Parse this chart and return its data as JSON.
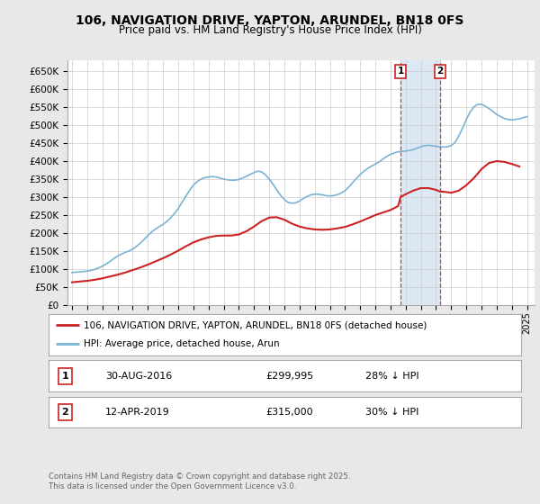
{
  "title": "106, NAVIGATION DRIVE, YAPTON, ARUNDEL, BN18 0FS",
  "subtitle": "Price paid vs. HM Land Registry's House Price Index (HPI)",
  "ylim": [
    0,
    680000
  ],
  "yticks": [
    0,
    50000,
    100000,
    150000,
    200000,
    250000,
    300000,
    350000,
    400000,
    450000,
    500000,
    550000,
    600000,
    650000
  ],
  "xlim_start": 1994.7,
  "xlim_end": 2025.5,
  "hpi_color": "#7ab3d4",
  "price_color": "#cc2222",
  "dashed_color": "#cc2222",
  "shading_color": "#dce9f5",
  "background_color": "#e8e8e8",
  "plot_bg_color": "#ffffff",
  "legend_label_price": "106, NAVIGATION DRIVE, YAPTON, ARUNDEL, BN18 0FS (detached house)",
  "legend_label_hpi": "HPI: Average price, detached house, Arun",
  "sale1_x": 2016.66,
  "sale1_label": "1",
  "sale1_date": "30-AUG-2016",
  "sale1_price": "£299,995",
  "sale1_pct": "28% ↓ HPI",
  "sale2_x": 2019.28,
  "sale2_label": "2",
  "sale2_date": "12-APR-2019",
  "sale2_price": "£315,000",
  "sale2_pct": "30% ↓ HPI",
  "footer": "Contains HM Land Registry data © Crown copyright and database right 2025.\nThis data is licensed under the Open Government Licence v3.0.",
  "hpi_years": [
    1995.0,
    1995.25,
    1995.5,
    1995.75,
    1996.0,
    1996.25,
    1996.5,
    1996.75,
    1997.0,
    1997.25,
    1997.5,
    1997.75,
    1998.0,
    1998.25,
    1998.5,
    1998.75,
    1999.0,
    1999.25,
    1999.5,
    1999.75,
    2000.0,
    2000.25,
    2000.5,
    2000.75,
    2001.0,
    2001.25,
    2001.5,
    2001.75,
    2002.0,
    2002.25,
    2002.5,
    2002.75,
    2003.0,
    2003.25,
    2003.5,
    2003.75,
    2004.0,
    2004.25,
    2004.5,
    2004.75,
    2005.0,
    2005.25,
    2005.5,
    2005.75,
    2006.0,
    2006.25,
    2006.5,
    2006.75,
    2007.0,
    2007.25,
    2007.5,
    2007.75,
    2008.0,
    2008.25,
    2008.5,
    2008.75,
    2009.0,
    2009.25,
    2009.5,
    2009.75,
    2010.0,
    2010.25,
    2010.5,
    2010.75,
    2011.0,
    2011.25,
    2011.5,
    2011.75,
    2012.0,
    2012.25,
    2012.5,
    2012.75,
    2013.0,
    2013.25,
    2013.5,
    2013.75,
    2014.0,
    2014.25,
    2014.5,
    2014.75,
    2015.0,
    2015.25,
    2015.5,
    2015.75,
    2016.0,
    2016.25,
    2016.5,
    2016.75,
    2017.0,
    2017.25,
    2017.5,
    2017.75,
    2018.0,
    2018.25,
    2018.5,
    2018.75,
    2019.0,
    2019.25,
    2019.5,
    2019.75,
    2020.0,
    2020.25,
    2020.5,
    2020.75,
    2021.0,
    2021.25,
    2021.5,
    2021.75,
    2022.0,
    2022.25,
    2022.5,
    2022.75,
    2023.0,
    2023.25,
    2023.5,
    2023.75,
    2024.0,
    2024.25,
    2024.5,
    2024.75,
    2025.0
  ],
  "hpi_values": [
    90000,
    91000,
    92000,
    93000,
    94000,
    96000,
    99000,
    103000,
    108000,
    114000,
    121000,
    129000,
    136000,
    141000,
    146000,
    150000,
    155000,
    163000,
    172000,
    182000,
    193000,
    203000,
    211000,
    218000,
    224000,
    232000,
    242000,
    254000,
    268000,
    285000,
    302000,
    319000,
    333000,
    343000,
    350000,
    354000,
    356000,
    357000,
    356000,
    353000,
    350000,
    348000,
    347000,
    347000,
    349000,
    353000,
    358000,
    363000,
    368000,
    372000,
    370000,
    362000,
    350000,
    336000,
    320000,
    305000,
    293000,
    285000,
    283000,
    284000,
    289000,
    296000,
    302000,
    306000,
    308000,
    308000,
    306000,
    304000,
    303000,
    304000,
    307000,
    311000,
    318000,
    328000,
    340000,
    352000,
    363000,
    372000,
    380000,
    386000,
    392000,
    398000,
    406000,
    413000,
    419000,
    423000,
    426000,
    427000,
    428000,
    430000,
    432000,
    436000,
    440000,
    443000,
    444000,
    443000,
    441000,
    440000,
    439000,
    440000,
    443000,
    452000,
    470000,
    492000,
    516000,
    537000,
    551000,
    558000,
    558000,
    553000,
    546000,
    538000,
    530000,
    524000,
    519000,
    516000,
    515000,
    516000,
    518000,
    521000,
    524000
  ],
  "price_years": [
    1995.0,
    1995.5,
    1996.0,
    1996.5,
    1997.0,
    1997.5,
    1998.0,
    1998.5,
    1999.0,
    1999.5,
    2000.0,
    2000.5,
    2001.0,
    2001.5,
    2002.0,
    2002.5,
    2003.0,
    2003.5,
    2004.0,
    2004.5,
    2005.0,
    2005.5,
    2006.0,
    2006.5,
    2007.0,
    2007.5,
    2008.0,
    2008.5,
    2009.0,
    2009.5,
    2010.0,
    2010.5,
    2011.0,
    2011.5,
    2012.0,
    2012.5,
    2013.0,
    2013.5,
    2014.0,
    2014.5,
    2015.0,
    2015.5,
    2016.0,
    2016.5,
    2016.66,
    2017.0,
    2017.5,
    2018.0,
    2018.5,
    2019.0,
    2019.28,
    2019.5,
    2020.0,
    2020.5,
    2021.0,
    2021.5,
    2022.0,
    2022.5,
    2023.0,
    2023.5,
    2024.0,
    2024.5
  ],
  "price_values": [
    63000,
    65000,
    67000,
    70000,
    74000,
    79000,
    84000,
    90000,
    97000,
    104000,
    112000,
    121000,
    130000,
    140000,
    151000,
    163000,
    174000,
    182000,
    188000,
    192000,
    193000,
    193000,
    196000,
    205000,
    218000,
    233000,
    243000,
    244000,
    237000,
    226000,
    218000,
    213000,
    210000,
    209000,
    210000,
    213000,
    217000,
    224000,
    232000,
    241000,
    250000,
    257000,
    264000,
    275000,
    299995,
    308000,
    318000,
    325000,
    325000,
    320000,
    315000,
    315000,
    312000,
    318000,
    333000,
    353000,
    378000,
    395000,
    400000,
    398000,
    392000,
    385000
  ]
}
